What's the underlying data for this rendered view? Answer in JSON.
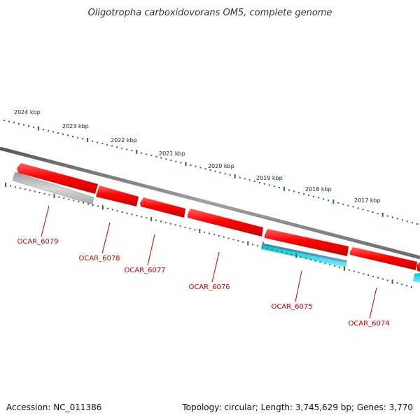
{
  "title": "Oligotropha carboxidovorans OM5, complete genome",
  "kbp_labels": [
    "2024 kbp",
    "2023 kbp",
    "2022 kbp",
    "2021 kbp",
    "2020 kbp",
    "2019 kbp",
    "2018 kbp",
    "2017 kbp"
  ],
  "genes": [
    {
      "label": "OCAR_6079",
      "color": "#ee0000"
    },
    {
      "label": "OCAR_6078",
      "color": "#ee0000"
    },
    {
      "label": "OCAR_6077",
      "color": "#ee0000"
    },
    {
      "label": "OCAR_6076",
      "color": "#ee0000"
    },
    {
      "label": "OCAR_6075",
      "color": "#ee0000"
    },
    {
      "label": "OCAR_6074",
      "color": "#ee0000"
    }
  ],
  "colors": {
    "forward_gene": "#ee0000",
    "backbone": "#808080",
    "ruler": "#1a7a1a",
    "gray_feature": "#b0b0b0",
    "blue_feature": "#4a7fb0",
    "cyan_feature": "#22d4e0",
    "label": "#cc0000"
  },
  "footer": {
    "accession": "Accession: NC_011386",
    "stats": "Topology: circular; Length: 3,745,629 bp; Genes: 3,770"
  }
}
